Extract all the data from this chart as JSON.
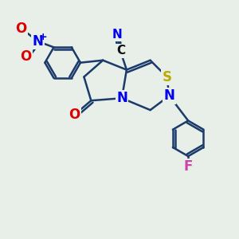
{
  "bg_color": "#e8eee8",
  "bond_color": "#1a3a6a",
  "bond_width": 1.8,
  "atom_colors": {
    "N": "#0000ee",
    "O": "#dd0000",
    "S": "#bbaa00",
    "F": "#cc44aa",
    "C": "#111111"
  },
  "font_size_atom": 12,
  "figsize": [
    3.0,
    3.0
  ],
  "dpi": 100
}
